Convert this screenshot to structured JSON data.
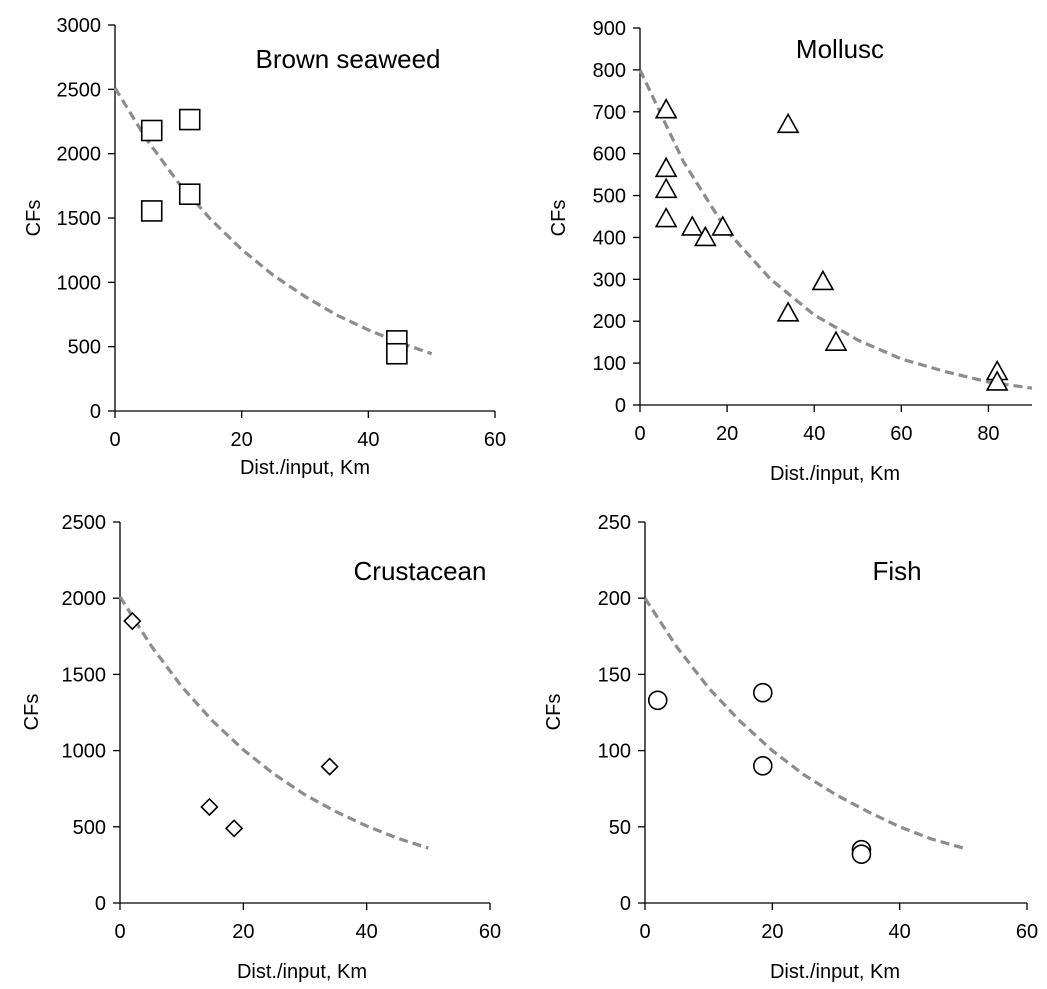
{
  "chart_data": [
    {
      "type": "scatter",
      "title": "Brown seaweed",
      "xlabel": "Dist./input, Km",
      "ylabel": "CFs",
      "xlim": [
        0,
        60
      ],
      "ylim": [
        0,
        3000
      ],
      "xticks": [
        0,
        20,
        40,
        60
      ],
      "yticks": [
        0,
        500,
        1000,
        1500,
        2000,
        2500,
        3000
      ],
      "marker": "square",
      "series": [
        {
          "name": "",
          "x": [
            5.8,
            11.8,
            5.8,
            11.8,
            44.5,
            44.5
          ],
          "y": [
            2180,
            2265,
            1555,
            1685,
            545,
            445
          ]
        }
      ],
      "trend": {
        "style": "dashed",
        "color": "#8c8c8c",
        "x": [
          0,
          5,
          10,
          15,
          20,
          25,
          30,
          35,
          40,
          45,
          50
        ],
        "y": [
          2510,
          2110,
          1775,
          1495,
          1255,
          1055,
          890,
          745,
          630,
          530,
          445
        ]
      }
    },
    {
      "type": "scatter",
      "title": "Mollusc",
      "xlabel": "Dist./input, Km",
      "ylabel": "CFs",
      "xlim": [
        0,
        90
      ],
      "ylim": [
        0,
        900
      ],
      "xticks": [
        0,
        20,
        40,
        60,
        80
      ],
      "yticks": [
        0,
        100,
        200,
        300,
        400,
        500,
        600,
        700,
        800,
        900
      ],
      "marker": "triangle",
      "series": [
        {
          "name": "",
          "x": [
            6,
            6,
            6,
            6,
            12,
            15,
            19,
            34,
            34,
            42,
            45,
            82,
            82
          ],
          "y": [
            705,
            565,
            515,
            445,
            425,
            400,
            425,
            670,
            220,
            295,
            150,
            80,
            55
          ]
        }
      ],
      "trend": {
        "style": "dashed",
        "color": "#8c8c8c",
        "x": [
          0,
          10,
          20,
          30,
          40,
          50,
          60,
          70,
          80,
          90
        ],
        "y": [
          800,
          580,
          415,
          300,
          215,
          155,
          110,
          80,
          55,
          40
        ]
      }
    },
    {
      "type": "scatter",
      "title": "Crustacean",
      "xlabel": "Dist./input, Km",
      "ylabel": "CFs",
      "xlim": [
        0,
        60
      ],
      "ylim": [
        0,
        2500
      ],
      "xticks": [
        0,
        20,
        40,
        60
      ],
      "yticks": [
        0,
        500,
        1000,
        1500,
        2000,
        2500
      ],
      "marker": "diamond",
      "series": [
        {
          "name": "",
          "x": [
            2,
            14.5,
            18.5,
            34
          ],
          "y": [
            1850,
            630,
            490,
            895
          ]
        }
      ],
      "trend": {
        "style": "dashed",
        "color": "#8c8c8c",
        "x": [
          0,
          5,
          10,
          15,
          20,
          25,
          30,
          35,
          40,
          45,
          50
        ],
        "y": [
          2010,
          1690,
          1420,
          1195,
          1005,
          845,
          710,
          600,
          505,
          425,
          360
        ]
      }
    },
    {
      "type": "scatter",
      "title": "Fish",
      "xlabel": "Dist./input, Km",
      "ylabel": "CFs",
      "xlim": [
        0,
        60
      ],
      "ylim": [
        0,
        250
      ],
      "xticks": [
        0,
        20,
        40,
        60
      ],
      "yticks": [
        0,
        50,
        100,
        150,
        200,
        250
      ],
      "marker": "circle",
      "series": [
        {
          "name": "",
          "x": [
            2,
            18.5,
            18.5,
            34,
            34
          ],
          "y": [
            133,
            138,
            90,
            35,
            32
          ]
        }
      ],
      "trend": {
        "style": "dashed",
        "color": "#8c8c8c",
        "x": [
          0,
          5,
          10,
          15,
          20,
          25,
          30,
          35,
          40,
          45,
          50
        ],
        "y": [
          200,
          168,
          141,
          119,
          100,
          84,
          71,
          60,
          50,
          42,
          36
        ]
      }
    }
  ]
}
